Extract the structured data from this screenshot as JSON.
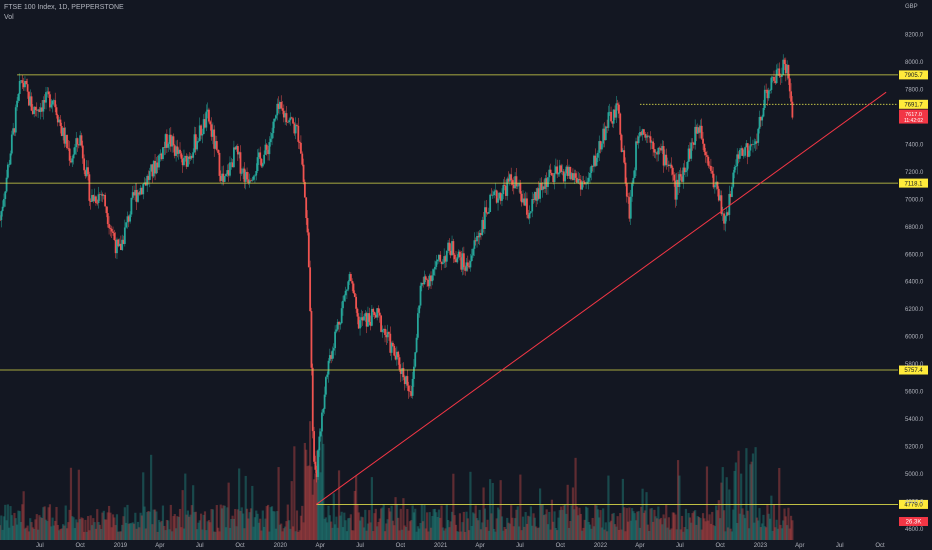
{
  "header": {
    "title": "FTSE 100 Index, 1D, PEPPERSTONE",
    "volume_label": "Vol"
  },
  "currency": "GBP",
  "colors": {
    "background": "#131722",
    "up": "#26a69a",
    "down": "#ef5350",
    "level_line": "#d9d94a",
    "trend_line": "#f23645",
    "level_label_bg": "#ffeb3b",
    "price_label_bg": "#f23645",
    "axis_text": "#b2b5be"
  },
  "chart_data": {
    "type": "candlestick",
    "x_ticks": [
      "Jul",
      "Oct",
      "2019",
      "Apr",
      "Jul",
      "Oct",
      "2020",
      "Apr",
      "Jul",
      "Oct",
      "2021",
      "Apr",
      "Jul",
      "Oct",
      "2022",
      "Apr",
      "Jul",
      "Oct",
      "2023",
      "Apr",
      "Jul",
      "Oct"
    ],
    "y_ticks": [
      4600,
      4800,
      5000,
      5200,
      5400,
      5600,
      5800,
      6000,
      6200,
      6400,
      6600,
      6800,
      7000,
      7200,
      7400,
      7600,
      7800,
      8000,
      8200
    ],
    "y_range": [
      4520,
      8400
    ],
    "price_path": [
      [
        "2018-04-01",
        6850
      ],
      [
        "2018-05-20",
        7880
      ],
      [
        "2018-06-15",
        7650
      ],
      [
        "2018-07-10",
        7700
      ],
      [
        "2018-08-01",
        7750
      ],
      [
        "2018-08-20",
        7500
      ],
      [
        "2018-09-10",
        7300
      ],
      [
        "2018-10-01",
        7450
      ],
      [
        "2018-10-25",
        7000
      ],
      [
        "2018-11-20",
        7050
      ],
      [
        "2018-12-10",
        6800
      ],
      [
        "2018-12-28",
        6600
      ],
      [
        "2019-02-01",
        7020
      ],
      [
        "2019-03-15",
        7200
      ],
      [
        "2019-04-20",
        7450
      ],
      [
        "2019-05-25",
        7250
      ],
      [
        "2019-07-20",
        7600
      ],
      [
        "2019-08-25",
        7100
      ],
      [
        "2019-09-20",
        7350
      ],
      [
        "2019-10-15",
        7150
      ],
      [
        "2019-12-01",
        7350
      ],
      [
        "2019-12-27",
        7650
      ],
      [
        "2020-01-20",
        7600
      ],
      [
        "2020-02-15",
        7450
      ],
      [
        "2020-03-05",
        6700
      ],
      [
        "2020-03-16",
        5150
      ],
      [
        "2020-03-23",
        5000
      ],
      [
        "2020-04-15",
        5750
      ],
      [
        "2020-06-08",
        6450
      ],
      [
        "2020-06-25",
        6100
      ],
      [
        "2020-08-10",
        6150
      ],
      [
        "2020-09-20",
        5850
      ],
      [
        "2020-10-28",
        5600
      ],
      [
        "2020-11-15",
        6350
      ],
      [
        "2020-12-31",
        6550
      ],
      [
        "2021-01-25",
        6650
      ],
      [
        "2021-03-01",
        6500
      ],
      [
        "2021-04-20",
        6950
      ],
      [
        "2021-06-15",
        7150
      ],
      [
        "2021-07-20",
        6900
      ],
      [
        "2021-09-01",
        7150
      ],
      [
        "2021-10-15",
        7200
      ],
      [
        "2021-12-01",
        7100
      ],
      [
        "2022-01-15",
        7550
      ],
      [
        "2022-02-10",
        7650
      ],
      [
        "2022-03-07",
        6900
      ],
      [
        "2022-03-30",
        7550
      ],
      [
        "2022-05-15",
        7350
      ],
      [
        "2022-06-10",
        7250
      ],
      [
        "2022-06-20",
        7050
      ],
      [
        "2022-08-15",
        7550
      ],
      [
        "2022-09-15",
        7150
      ],
      [
        "2022-10-12",
        6850
      ],
      [
        "2022-11-15",
        7350
      ],
      [
        "2022-12-20",
        7400
      ],
      [
        "2023-01-10",
        7750
      ],
      [
        "2023-02-15",
        7950
      ],
      [
        "2023-02-25",
        8000
      ],
      [
        "2023-03-03",
        7950
      ],
      [
        "2023-03-10",
        7700
      ],
      [
        "2023-03-16",
        7617
      ]
    ],
    "horizontal_levels": [
      {
        "value": 7905.7,
        "label": "7905.7"
      },
      {
        "value": 7691.7,
        "label": "7691.7",
        "style": "dotted"
      },
      {
        "value": 7118.1,
        "label": "7118.1"
      },
      {
        "value": 5757.4,
        "label": "5757.4"
      },
      {
        "value": 4779.0,
        "label": "4779.0"
      }
    ],
    "trend_line": {
      "start": [
        "2020-03-23",
        4779
      ],
      "end": [
        "2023-10-15",
        7780
      ]
    },
    "last_price": {
      "value": "7617.0",
      "countdown": "11:42:02"
    },
    "volume_label": "26.3K"
  }
}
